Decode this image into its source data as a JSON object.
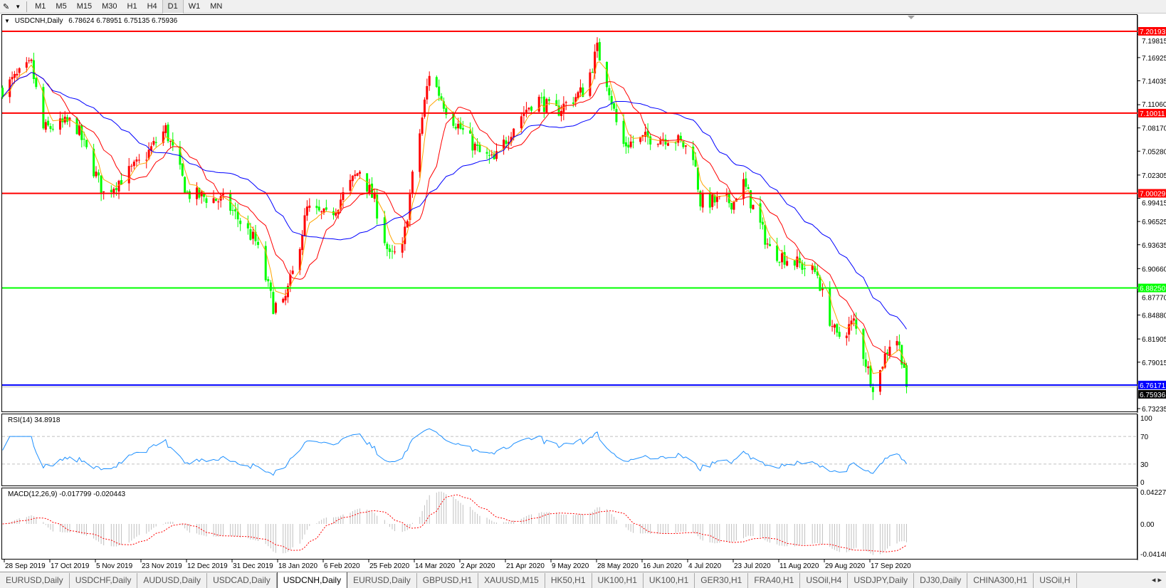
{
  "toolbar": {
    "timeframes": [
      "M1",
      "M5",
      "M15",
      "M30",
      "H1",
      "H4",
      "D1",
      "W1",
      "MN"
    ],
    "active_timeframe": "D1"
  },
  "chart": {
    "symbol_label": "USDCNH,Daily",
    "ohlc": "6.78624 6.78951 6.75135 6.75936",
    "current_price": "6.75936",
    "price_ticks": [
      "7.19815",
      "7.16925",
      "7.14035",
      "7.11060",
      "7.08170",
      "7.05280",
      "7.02305",
      "6.99415",
      "6.96525",
      "6.93635",
      "6.90660",
      "6.87770",
      "6.84880",
      "6.81905",
      "6.79015",
      "6.73235"
    ],
    "horizontal_lines": [
      {
        "price": "7.20193",
        "color": "#ff0000"
      },
      {
        "price": "7.10011",
        "color": "#ff0000"
      },
      {
        "price": "7.00029",
        "color": "#ff0000"
      },
      {
        "price": "6.88250",
        "color": "#00ff00"
      },
      {
        "price": "6.76171",
        "color": "#0000ff"
      }
    ],
    "colors": {
      "bull_candle": "#ff0000",
      "bear_candle": "#00ff00",
      "ma_fast": "#ffa500",
      "ma_mid": "#ff0000",
      "ma_slow": "#0000ff",
      "rsi": "#1e90ff",
      "macd_hist": "#c0c0c0",
      "macd_signal": "#ff0000"
    }
  },
  "chart_data": {
    "type": "candlestick",
    "symbol": "USDCNH",
    "timeframe": "Daily",
    "last_bar": {
      "open": 6.78624,
      "high": 6.78951,
      "low": 6.75135,
      "close": 6.75936
    },
    "price_range": [
      6.73235,
      7.20193
    ],
    "approx_close_path": [
      [
        "2019-09-27",
        7.13
      ],
      [
        "2019-10-09",
        7.16
      ],
      [
        "2019-10-14",
        7.08
      ],
      [
        "2019-10-27",
        7.09
      ],
      [
        "2019-11-08",
        7.0
      ],
      [
        "2019-11-23",
        7.04
      ],
      [
        "2019-12-03",
        7.08
      ],
      [
        "2019-12-12",
        7.0
      ],
      [
        "2019-12-28",
        6.99
      ],
      [
        "2020-01-09",
        6.94
      ],
      [
        "2020-01-16",
        6.86
      ],
      [
        "2020-01-20",
        6.86
      ],
      [
        "2020-01-24",
        6.9
      ],
      [
        "2020-01-30",
        6.98
      ],
      [
        "2020-02-08",
        6.97
      ],
      [
        "2020-02-21",
        7.03
      ],
      [
        "2020-02-27",
        6.99
      ],
      [
        "2020-03-04",
        6.92
      ],
      [
        "2020-03-09",
        6.93
      ],
      [
        "2020-03-13",
        7.02
      ],
      [
        "2020-03-20",
        7.15
      ],
      [
        "2020-03-28",
        7.1
      ],
      [
        "2020-04-10",
        7.05
      ],
      [
        "2020-04-16",
        7.04
      ],
      [
        "2020-04-25",
        7.09
      ],
      [
        "2020-05-03",
        7.12
      ],
      [
        "2020-05-10",
        7.1
      ],
      [
        "2020-05-23",
        7.13
      ],
      [
        "2020-05-28",
        7.18
      ],
      [
        "2020-06-02",
        7.13
      ],
      [
        "2020-06-07",
        7.06
      ],
      [
        "2020-06-19",
        7.07
      ],
      [
        "2020-06-28",
        7.07
      ],
      [
        "2020-07-06",
        7.05
      ],
      [
        "2020-07-09",
        6.99
      ],
      [
        "2020-07-23",
        6.99
      ],
      [
        "2020-07-26",
        7.02
      ],
      [
        "2020-08-07",
        6.93
      ],
      [
        "2020-08-20",
        6.91
      ],
      [
        "2020-08-26",
        6.9
      ],
      [
        "2020-08-29",
        6.86
      ],
      [
        "2020-09-03",
        6.82
      ],
      [
        "2020-09-10",
        6.84
      ],
      [
        "2020-09-17",
        6.77
      ],
      [
        "2020-09-19",
        6.755
      ],
      [
        "2020-09-22",
        6.79
      ],
      [
        "2020-09-27",
        6.83
      ],
      [
        "2020-10-01",
        6.786
      ],
      [
        "2020-10-02",
        6.75936
      ]
    ],
    "date_labels": [
      "28 Sep 2019",
      "17 Oct 2019",
      "5 Nov 2019",
      "23 Nov 2019",
      "12 Dec 2019",
      "31 Dec 2019",
      "18 Jan 2020",
      "6 Feb 2020",
      "25 Feb 2020",
      "14 Mar 2020",
      "2 Apr 2020",
      "21 Apr 2020",
      "9 May 2020",
      "28 May 2020",
      "16 Jun 2020",
      "4 Jul 2020",
      "23 Jul 2020",
      "11 Aug 2020",
      "29 Aug 2020",
      "17 Sep 2020"
    ],
    "date_label_iso": [
      "2019-09-28",
      "2019-10-17",
      "2019-11-05",
      "2019-11-23",
      "2019-12-12",
      "2019-12-31",
      "2020-01-18",
      "2020-02-06",
      "2020-02-25",
      "2020-03-14",
      "2020-04-02",
      "2020-04-21",
      "2020-05-09",
      "2020-05-28",
      "2020-06-16",
      "2020-07-04",
      "2020-07-23",
      "2020-08-11",
      "2020-08-29",
      "2020-09-17"
    ]
  },
  "rsi": {
    "label": "RSI(14) 34.8918",
    "levels": [
      "100",
      "70",
      "30",
      "0"
    ]
  },
  "macd": {
    "label": "MACD(12,26,9) -0.017799 -0.020443",
    "scale": [
      "0.042275",
      "0.00",
      "-0.04148"
    ]
  },
  "tabs": [
    "EURUSD,Daily",
    "USDCHF,Daily",
    "AUDUSD,Daily",
    "USDCAD,Daily",
    "USDCNH,Daily",
    "EURUSD,Daily",
    "GBPUSD,H1",
    "XAUUSD,M15",
    "HK50,H1",
    "UK100,H1",
    "UK100,H1",
    "GER30,H1",
    "FRA40,H1",
    "USOil,H4",
    "USDJPY,Daily",
    "DJ30,Daily",
    "CHINA300,H1",
    "USOil,H"
  ],
  "active_tab": 4,
  "tab_scroll": {
    "left": "◂",
    "right": "▸"
  }
}
